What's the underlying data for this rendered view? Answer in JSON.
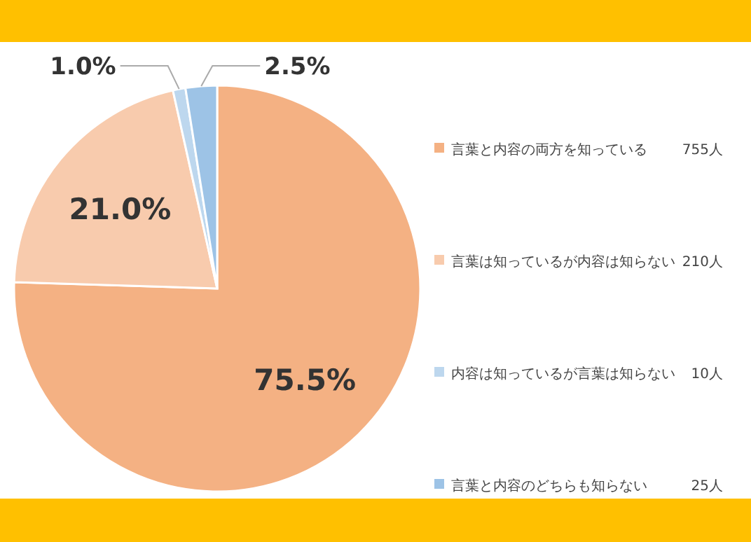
{
  "chart_data": {
    "type": "pie",
    "categories": [
      "言葉と内容の両方を知っている",
      "言葉は知っているが内容は知らない",
      "内容は知っているが言葉は知らない",
      "言葉と内容のどちらも知らない"
    ],
    "values": [
      75.5,
      21.0,
      1.0,
      2.5
    ],
    "colors": [
      "#f4b183",
      "#f8cbad",
      "#bdd7ee",
      "#9dc3e6"
    ],
    "value_labels": [
      "75.5%",
      "21.0%",
      "1.0%",
      "2.5%"
    ],
    "annotations": [
      "755人",
      "210人",
      "10人",
      "25人"
    ],
    "legend": "right"
  }
}
